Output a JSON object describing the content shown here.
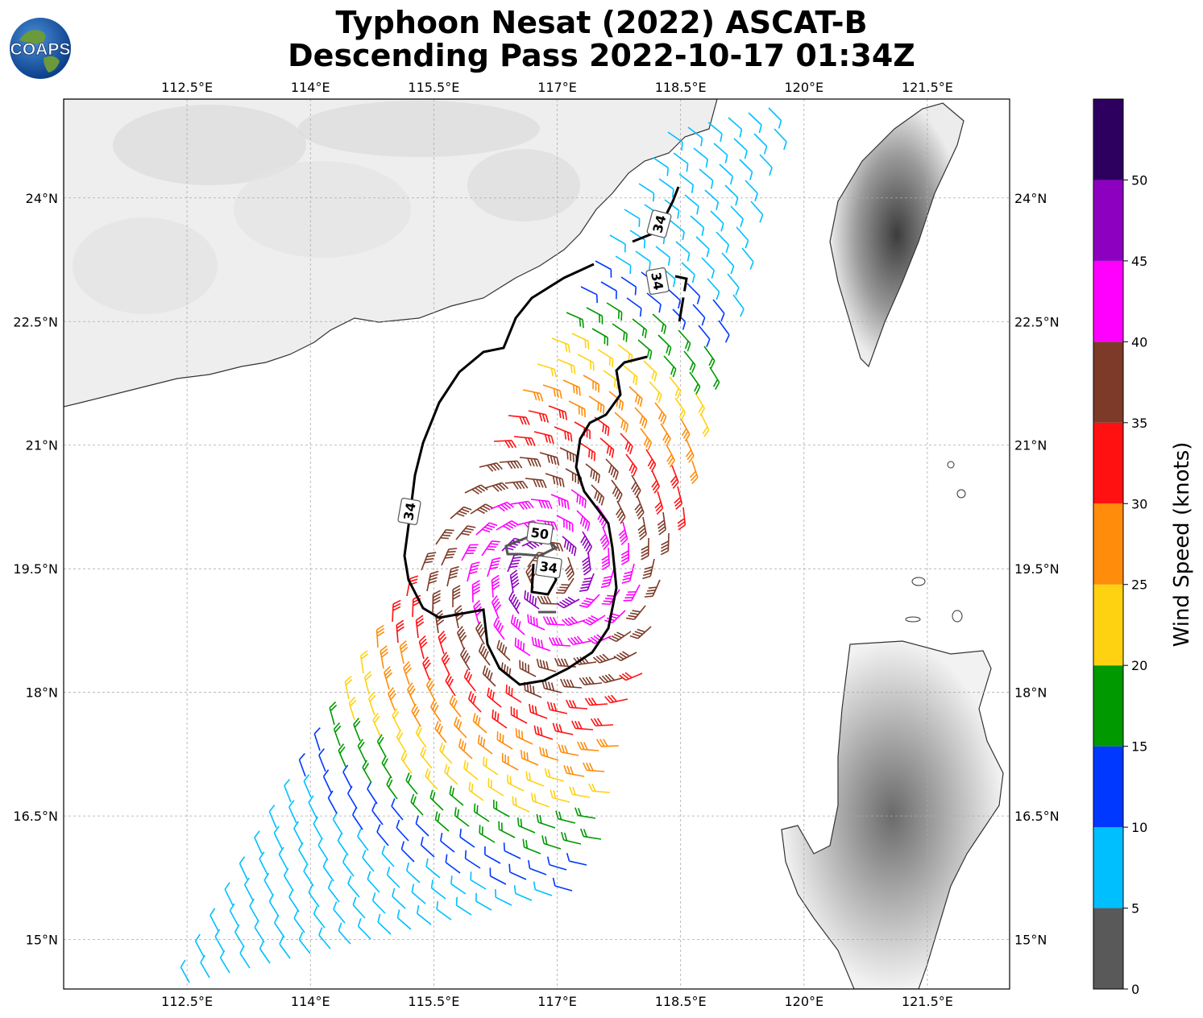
{
  "title": {
    "line1": "Typhoon Nesat (2022) ASCAT-B",
    "line2": "Descending Pass 2022-10-17 01:34Z"
  },
  "logo": {
    "text": "COAPS",
    "icon": "globe-icon"
  },
  "map": {
    "projection": "PlateCarree",
    "lon_range": [
      111.0,
      122.5
    ],
    "lat_range": [
      14.4,
      25.2
    ],
    "lon_ticks": [
      {
        "value": 112.5,
        "label": "112.5°E"
      },
      {
        "value": 114.0,
        "label": "114°E"
      },
      {
        "value": 115.5,
        "label": "115.5°E"
      },
      {
        "value": 117.0,
        "label": "117°E"
      },
      {
        "value": 118.5,
        "label": "118.5°E"
      },
      {
        "value": 120.0,
        "label": "120°E"
      },
      {
        "value": 121.5,
        "label": "121.5°E"
      }
    ],
    "lat_ticks": [
      {
        "value": 24.0,
        "label": "24°N"
      },
      {
        "value": 22.5,
        "label": "22.5°N"
      },
      {
        "value": 21.0,
        "label": "21°N"
      },
      {
        "value": 19.5,
        "label": "19.5°N"
      },
      {
        "value": 18.0,
        "label": "18°N"
      },
      {
        "value": 16.5,
        "label": "16.5°N"
      },
      {
        "value": 15.0,
        "label": "15°N"
      }
    ],
    "grid": true,
    "storm_center": {
      "lon": 116.9,
      "lat": 19.45
    },
    "contour_labels": [
      "34",
      "50",
      "34",
      "34",
      "34"
    ],
    "land_regions": [
      "South China coast",
      "Taiwan",
      "Luzon"
    ]
  },
  "colorbar": {
    "label": "Wind Speed (knots)",
    "ticks": [
      "0",
      "5",
      "10",
      "15",
      "20",
      "25",
      "30",
      "35",
      "40",
      "45",
      "50"
    ],
    "bins": [
      {
        "min": 0,
        "max": 5,
        "color": "#595959"
      },
      {
        "min": 5,
        "max": 10,
        "color": "#00bfff"
      },
      {
        "min": 10,
        "max": 15,
        "color": "#0038ff"
      },
      {
        "min": 15,
        "max": 20,
        "color": "#009900"
      },
      {
        "min": 20,
        "max": 25,
        "color": "#ffd211"
      },
      {
        "min": 25,
        "max": 30,
        "color": "#ff8c0a"
      },
      {
        "min": 30,
        "max": 35,
        "color": "#ff1111"
      },
      {
        "min": 35,
        "max": 40,
        "color": "#7d3a28"
      },
      {
        "min": 40,
        "max": 45,
        "color": "#ff00ff"
      },
      {
        "min": 45,
        "max": 50,
        "color": "#8e00bf"
      },
      {
        "min": 50,
        "max": 55,
        "color": "#2d0060"
      }
    ]
  }
}
